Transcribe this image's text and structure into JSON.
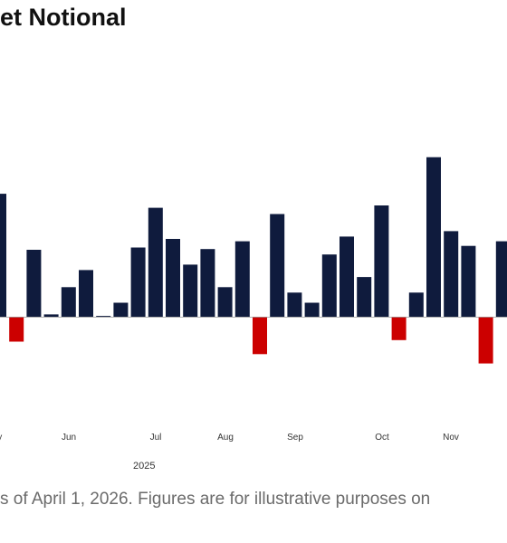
{
  "title": "et Notional",
  "footnote": "s of April 1, 2026. Figures are for illustrative purposes on",
  "colors": {
    "positive": "#0f1b3d",
    "negative": "#cc0000",
    "zero_line": "#9a9a9a"
  },
  "chart_data": {
    "type": "bar",
    "title": "et Notional",
    "xlabel": "2025",
    "ylabel": "",
    "ylim": [
      -60,
      205
    ],
    "grid": false,
    "x_tick_labels": [
      "ay",
      "Jun",
      "Jul",
      "Aug",
      "Sep",
      "Oct",
      "Nov"
    ],
    "values": [
      158,
      -32,
      86,
      3,
      38,
      60,
      1,
      18,
      89,
      140,
      100,
      67,
      87,
      38,
      97,
      -48,
      132,
      31,
      18,
      80,
      103,
      51,
      143,
      -30,
      31,
      205,
      110,
      91,
      -60,
      97
    ]
  }
}
